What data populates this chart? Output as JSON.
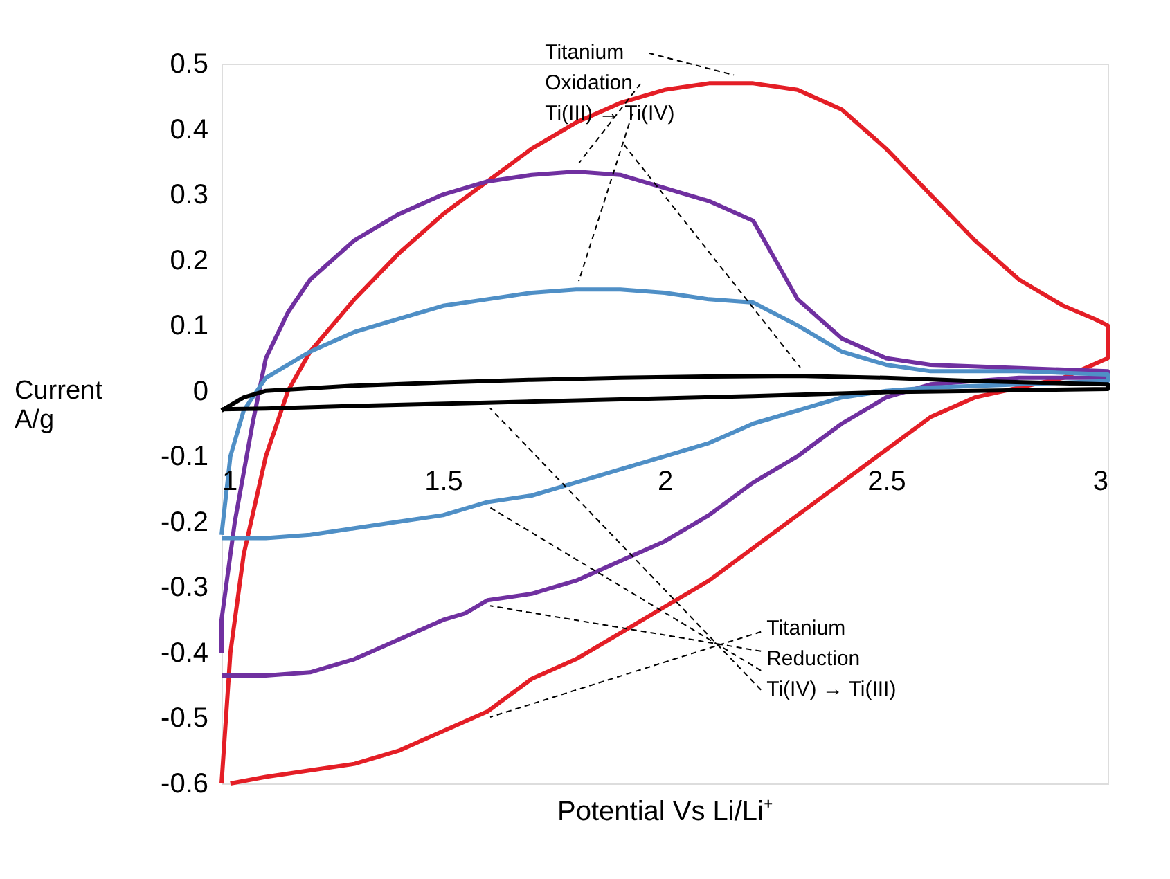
{
  "chart_data": {
    "type": "line",
    "xlabel": "Potential Vs Li/Li⁺",
    "ylabel": "Current A/g",
    "xlim": [
      1,
      3
    ],
    "xticks": [
      1,
      1.5,
      2,
      2.5,
      3
    ],
    "ylim": [
      -0.6,
      0.5
    ],
    "yticks": [
      0.5,
      0.4,
      0.3,
      0.2,
      0.1,
      0,
      -0.1,
      -0.2,
      -0.3,
      -0.4,
      -0.5,
      -0.6
    ],
    "grid": false,
    "legend": false,
    "marker": "none",
    "line_style": "solid",
    "series": [
      {
        "color": "#e41e26",
        "x": [
          1,
          1.02,
          1.05,
          1.1,
          1.15,
          1.2,
          1.3,
          1.4,
          1.5,
          1.6,
          1.7,
          1.8,
          1.9,
          2.0,
          2.1,
          2.2,
          2.3,
          2.4,
          2.5,
          2.6,
          2.7,
          2.8,
          2.9,
          2.97,
          3.0,
          3.0,
          2.9,
          2.8,
          2.7,
          2.6,
          2.5,
          2.4,
          2.3,
          2.2,
          2.1,
          2.0,
          1.9,
          1.8,
          1.7,
          1.6,
          1.5,
          1.4,
          1.3,
          1.2,
          1.1,
          1.02
        ],
        "values": [
          -0.6,
          -0.4,
          -0.25,
          -0.1,
          0,
          0.06,
          0.14,
          0.21,
          0.27,
          0.32,
          0.37,
          0.41,
          0.44,
          0.46,
          0.47,
          0.47,
          0.46,
          0.43,
          0.37,
          0.3,
          0.23,
          0.17,
          0.13,
          0.11,
          0.1,
          0.05,
          0.02,
          0.005,
          -0.01,
          -0.04,
          -0.09,
          -0.14,
          -0.19,
          -0.24,
          -0.29,
          -0.33,
          -0.37,
          -0.41,
          -0.44,
          -0.49,
          -0.52,
          -0.55,
          -0.57,
          -0.58,
          -0.59,
          -0.6
        ]
      },
      {
        "color": "#7030a0",
        "x": [
          1.0,
          1.0,
          1.03,
          1.07,
          1.1,
          1.15,
          1.2,
          1.3,
          1.4,
          1.5,
          1.6,
          1.7,
          1.8,
          1.9,
          2.0,
          2.1,
          2.2,
          2.25,
          2.3,
          2.4,
          2.5,
          2.6,
          2.8,
          3.0,
          3.0,
          2.8,
          2.6,
          2.5,
          2.4,
          2.3,
          2.2,
          2.1,
          2.0,
          1.9,
          1.8,
          1.7,
          1.6,
          1.55,
          1.5,
          1.4,
          1.3,
          1.2,
          1.1,
          1.0
        ],
        "values": [
          -0.4,
          -0.35,
          -0.2,
          -0.05,
          0.05,
          0.12,
          0.17,
          0.23,
          0.27,
          0.3,
          0.32,
          0.33,
          0.335,
          0.33,
          0.31,
          0.29,
          0.26,
          0.2,
          0.14,
          0.08,
          0.05,
          0.04,
          0.035,
          0.03,
          0.02,
          0.02,
          0.01,
          -0.01,
          -0.05,
          -0.1,
          -0.14,
          -0.19,
          -0.23,
          -0.26,
          -0.29,
          -0.31,
          -0.32,
          -0.34,
          -0.35,
          -0.38,
          -0.41,
          -0.43,
          -0.435,
          -0.435
        ]
      },
      {
        "color": "#4f8fc6",
        "x": [
          1.0,
          1.02,
          1.05,
          1.1,
          1.2,
          1.3,
          1.4,
          1.5,
          1.6,
          1.7,
          1.8,
          1.9,
          2.0,
          2.1,
          2.2,
          2.3,
          2.4,
          2.5,
          2.6,
          2.8,
          3.0,
          3.0,
          2.8,
          2.6,
          2.5,
          2.4,
          2.3,
          2.2,
          2.1,
          2.0,
          1.9,
          1.8,
          1.7,
          1.6,
          1.5,
          1.4,
          1.3,
          1.2,
          1.1,
          1.0
        ],
        "values": [
          -0.22,
          -0.1,
          -0.03,
          0.02,
          0.06,
          0.09,
          0.11,
          0.13,
          0.14,
          0.15,
          0.155,
          0.155,
          0.15,
          0.14,
          0.135,
          0.1,
          0.06,
          0.04,
          0.03,
          0.03,
          0.025,
          0.015,
          0.01,
          0.005,
          0.0,
          -0.01,
          -0.03,
          -0.05,
          -0.08,
          -0.1,
          -0.12,
          -0.14,
          -0.16,
          -0.17,
          -0.19,
          -0.2,
          -0.21,
          -0.22,
          -0.225,
          -0.225
        ]
      },
      {
        "color": "#000000",
        "x": [
          1.0,
          1.05,
          1.1,
          1.3,
          1.5,
          1.7,
          1.9,
          2.1,
          2.3,
          2.5,
          2.7,
          3.0,
          3.0,
          2.7,
          2.5,
          2.2,
          1.9,
          1.6,
          1.3,
          1.1,
          1.0
        ],
        "values": [
          -0.03,
          -0.01,
          0.0,
          0.008,
          0.013,
          0.017,
          0.02,
          0.022,
          0.023,
          0.02,
          0.015,
          0.01,
          0.003,
          0.0,
          -0.002,
          -0.008,
          -0.013,
          -0.018,
          -0.023,
          -0.027,
          -0.028
        ]
      }
    ],
    "annotations": [
      {
        "text": "Titanium\nOxidation\nTi(III) → Ti(IV)",
        "x": 2.15,
        "y": 0.47
      },
      {
        "text": "Titanium\nReduction\nTi(IV) → Ti(III)",
        "x": 1.6,
        "y": -0.49
      }
    ]
  }
}
